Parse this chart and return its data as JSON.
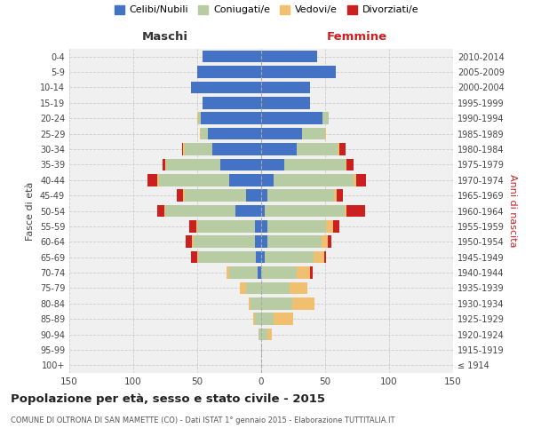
{
  "age_groups": [
    "100+",
    "95-99",
    "90-94",
    "85-89",
    "80-84",
    "75-79",
    "70-74",
    "65-69",
    "60-64",
    "55-59",
    "50-54",
    "45-49",
    "40-44",
    "35-39",
    "30-34",
    "25-29",
    "20-24",
    "15-19",
    "10-14",
    "5-9",
    "0-4"
  ],
  "birth_years": [
    "≤ 1914",
    "1915-1919",
    "1920-1924",
    "1925-1929",
    "1930-1934",
    "1935-1939",
    "1940-1944",
    "1945-1949",
    "1950-1954",
    "1955-1959",
    "1960-1964",
    "1965-1969",
    "1970-1974",
    "1975-1979",
    "1980-1984",
    "1985-1989",
    "1990-1994",
    "1995-1999",
    "2000-2004",
    "2005-2009",
    "2010-2014"
  ],
  "colors": {
    "celibi": "#4472c4",
    "coniugati": "#b8cca4",
    "vedovi": "#f0c070",
    "divorziati": "#cc2020"
  },
  "maschi": {
    "celibi": [
      0,
      0,
      0,
      0,
      0,
      0,
      3,
      4,
      5,
      5,
      20,
      12,
      25,
      32,
      38,
      42,
      47,
      46,
      55,
      50,
      46
    ],
    "coniugati": [
      0,
      0,
      2,
      5,
      8,
      12,
      22,
      45,
      48,
      45,
      55,
      48,
      55,
      42,
      22,
      5,
      2,
      0,
      0,
      0,
      0
    ],
    "vedovi": [
      0,
      0,
      0,
      1,
      2,
      5,
      2,
      1,
      1,
      1,
      1,
      1,
      1,
      1,
      1,
      1,
      1,
      0,
      0,
      0,
      0
    ],
    "divorziati": [
      0,
      0,
      0,
      0,
      0,
      0,
      0,
      5,
      5,
      5,
      5,
      5,
      8,
      2,
      1,
      0,
      0,
      0,
      0,
      0,
      0
    ]
  },
  "femmine": {
    "celibi": [
      0,
      0,
      0,
      0,
      0,
      0,
      0,
      3,
      5,
      5,
      3,
      5,
      10,
      18,
      28,
      32,
      48,
      38,
      38,
      58,
      44
    ],
    "coniugati": [
      0,
      1,
      5,
      10,
      24,
      22,
      28,
      38,
      42,
      46,
      62,
      52,
      62,
      48,
      32,
      18,
      5,
      0,
      0,
      0,
      0
    ],
    "vedovi": [
      0,
      0,
      3,
      15,
      18,
      14,
      10,
      8,
      5,
      5,
      2,
      2,
      2,
      1,
      1,
      1,
      0,
      0,
      0,
      0,
      0
    ],
    "divorziati": [
      0,
      0,
      0,
      0,
      0,
      0,
      2,
      2,
      3,
      5,
      14,
      5,
      8,
      5,
      5,
      0,
      0,
      0,
      0,
      0,
      0
    ]
  },
  "xlim": 150,
  "title": "Popolazione per età, sesso e stato civile - 2015",
  "subtitle": "COMUNE DI OLTRONA DI SAN MAMETTE (CO) - Dati ISTAT 1° gennaio 2015 - Elaborazione TUTTITALIA.IT",
  "xlabel_left": "Maschi",
  "xlabel_right": "Femmine",
  "ylabel_left": "Fasce di età",
  "ylabel_right": "Anni di nascita",
  "bg_color": "#f0f0f0",
  "grid_color": "#cccccc",
  "legend_items": [
    "Celibi/Nubili",
    "Coniugati/e",
    "Vedovi/e",
    "Divorziati/e"
  ]
}
